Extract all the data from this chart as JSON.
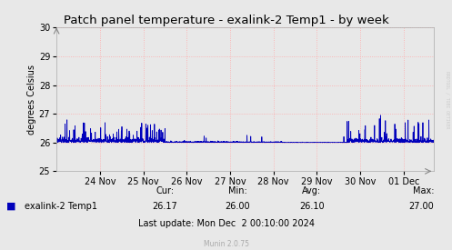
{
  "title": "Patch panel temperature - exalink-2 Temp1 - by week",
  "ylabel": "degrees Celsius",
  "ylim": [
    25,
    30
  ],
  "yticks": [
    25,
    26,
    27,
    28,
    29,
    30
  ],
  "x_tick_labels": [
    "24 Nov",
    "25 Nov",
    "26 Nov",
    "27 Nov",
    "28 Nov",
    "29 Nov",
    "30 Nov",
    "01 Dec"
  ],
  "x_tick_positions": [
    1,
    2,
    3,
    4,
    5,
    6,
    7,
    8
  ],
  "xlim": [
    0,
    8.7
  ],
  "line_color": "#0000bb",
  "bg_color": "#e8e8e8",
  "grid_color": "#ffaaaa",
  "title_fontsize": 9.5,
  "axis_fontsize": 7,
  "tick_fontsize": 7,
  "legend_label": "exalink-2 Temp1",
  "legend_color": "#0000bb",
  "cur_label": "Cur:",
  "cur_val": "26.17",
  "min_label": "Min:",
  "min_val": "26.00",
  "avg_label": "Avg:",
  "avg_val": "26.10",
  "max_label": "Max:",
  "max_val": "27.00",
  "last_update": "Last update: Mon Dec  2 00:10:00 2024",
  "munin_version": "Munin 2.0.75",
  "watermark": "RRDTOOL / TOBI OETIKER",
  "base_temp": 26.0
}
